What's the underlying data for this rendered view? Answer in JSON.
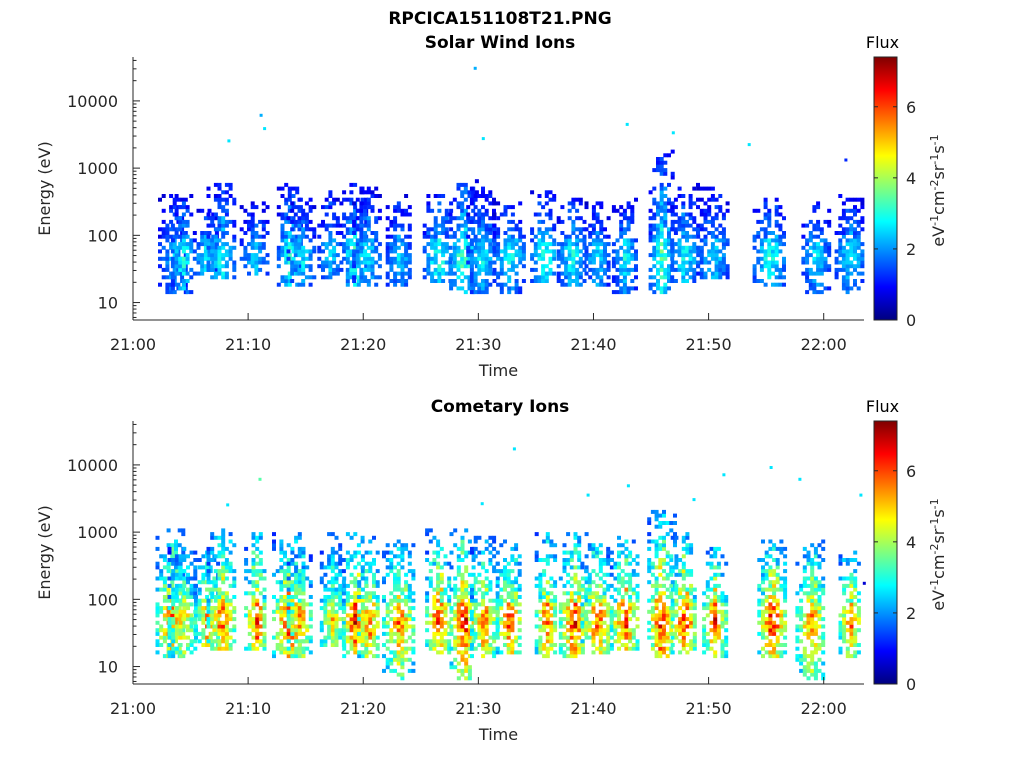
{
  "figure": {
    "title": "RPCICA151108T21.PNG"
  },
  "colors": {
    "colormap": [
      "#00007f",
      "#0000ff",
      "#007fff",
      "#00ffff",
      "#7fff7f",
      "#ffff00",
      "#ff7f00",
      "#ff0000",
      "#7f0000"
    ],
    "axis": "#262626"
  },
  "chart_data": [
    {
      "type": "heatmap",
      "title": "Solar Wind Ions",
      "xlabel": "Time",
      "ylabel": "Energy (eV)",
      "x_ticks": [
        "21:00",
        "21:10",
        "21:20",
        "21:30",
        "21:40",
        "21:50",
        "22:00"
      ],
      "xlim_minutes": [
        0,
        63.5
      ],
      "y_scale": "log",
      "y_ticks": [
        "10",
        "100",
        "1000",
        "10000"
      ],
      "ylim": [
        5.5,
        45000
      ],
      "colorbar": {
        "label_top": "Flux",
        "label": "eV-1cm-2sr-1s-1",
        "ticks": [
          "0",
          "2",
          "4",
          "6"
        ],
        "range": [
          0,
          7.4
        ]
      },
      "bursts": [
        {
          "minute": 3.4,
          "peak": 2.6,
          "maxE": 450,
          "minE": 12
        },
        {
          "minute": 4.2,
          "peak": 3.4,
          "maxE": 400,
          "minE": 12
        },
        {
          "minute": 6.2,
          "peak": 3.0,
          "maxE": 250,
          "minE": 25
        },
        {
          "minute": 7.6,
          "peak": 3.2,
          "maxE": 600,
          "minE": 20
        },
        {
          "minute": 10.5,
          "peak": 2.8,
          "maxE": 300,
          "minE": 25
        },
        {
          "minute": 13.5,
          "peak": 3.3,
          "maxE": 600,
          "minE": 16
        },
        {
          "minute": 14.5,
          "peak": 3.0,
          "maxE": 350,
          "minE": 16
        },
        {
          "minute": 17.0,
          "peak": 2.8,
          "maxE": 450,
          "minE": 20
        },
        {
          "minute": 19.2,
          "peak": 3.6,
          "maxE": 600,
          "minE": 16
        },
        {
          "minute": 20.2,
          "peak": 3.0,
          "maxE": 500,
          "minE": 16
        },
        {
          "minute": 23.0,
          "peak": 2.8,
          "maxE": 400,
          "minE": 16
        },
        {
          "minute": 26.4,
          "peak": 3.4,
          "maxE": 400,
          "minE": 18
        },
        {
          "minute": 28.6,
          "peak": 3.8,
          "maxE": 650,
          "minE": 12
        },
        {
          "minute": 30.2,
          "peak": 3.0,
          "maxE": 500,
          "minE": 12
        },
        {
          "minute": 32.6,
          "peak": 3.2,
          "maxE": 300,
          "minE": 12
        },
        {
          "minute": 35.6,
          "peak": 3.4,
          "maxE": 450,
          "minE": 18
        },
        {
          "minute": 38.0,
          "peak": 3.2,
          "maxE": 350,
          "minE": 16
        },
        {
          "minute": 40.2,
          "peak": 3.0,
          "maxE": 300,
          "minE": 16
        },
        {
          "minute": 42.6,
          "peak": 3.0,
          "maxE": 350,
          "minE": 12
        },
        {
          "minute": 45.8,
          "peak": 3.6,
          "maxE": 1800,
          "minE": 12
        },
        {
          "minute": 47.8,
          "peak": 3.2,
          "maxE": 600,
          "minE": 18
        },
        {
          "minute": 50.3,
          "peak": 2.8,
          "maxE": 500,
          "minE": 20
        },
        {
          "minute": 55.2,
          "peak": 3.4,
          "maxE": 350,
          "minE": 16
        },
        {
          "minute": 59.2,
          "peak": 3.0,
          "maxE": 300,
          "minE": 12
        },
        {
          "minute": 62.2,
          "peak": 3.0,
          "maxE": 400,
          "minE": 12
        }
      ],
      "isolated_points": [
        {
          "minute": 29.6,
          "energy": 30000,
          "value": 2.2
        },
        {
          "minute": 11.0,
          "energy": 6000,
          "value": 2.2
        },
        {
          "minute": 11.3,
          "energy": 3800,
          "value": 2.6
        },
        {
          "minute": 8.2,
          "energy": 2500,
          "value": 2.6
        },
        {
          "minute": 30.3,
          "energy": 2700,
          "value": 2.6
        },
        {
          "minute": 42.8,
          "energy": 4400,
          "value": 2.6
        },
        {
          "minute": 46.8,
          "energy": 3300,
          "value": 2.6
        },
        {
          "minute": 53.4,
          "energy": 2200,
          "value": 2.6
        },
        {
          "minute": 61.8,
          "energy": 1300,
          "value": 1.2
        }
      ]
    },
    {
      "type": "heatmap",
      "title": "Cometary Ions",
      "xlabel": "Time",
      "ylabel": "Energy (eV)",
      "x_ticks": [
        "21:00",
        "21:10",
        "21:20",
        "21:30",
        "21:40",
        "21:50",
        "22:00"
      ],
      "xlim_minutes": [
        0,
        63.5
      ],
      "y_scale": "log",
      "y_ticks": [
        "10",
        "100",
        "1000",
        "10000"
      ],
      "ylim": [
        5.5,
        45000
      ],
      "colorbar": {
        "label_top": "Flux",
        "label": "eV-1cm-2sr-1s-1",
        "ticks": [
          "0",
          "2",
          "4",
          "6"
        ],
        "range": [
          0,
          7.4
        ]
      },
      "bursts": [
        {
          "minute": 3.2,
          "peak": 6.4,
          "maxE": 1100,
          "minE": 12
        },
        {
          "minute": 4.2,
          "peak": 5.6,
          "maxE": 600,
          "minE": 12
        },
        {
          "minute": 6.4,
          "peak": 6.2,
          "maxE": 500,
          "minE": 18
        },
        {
          "minute": 7.6,
          "peak": 6.4,
          "maxE": 1100,
          "minE": 16
        },
        {
          "minute": 10.6,
          "peak": 6.6,
          "maxE": 1000,
          "minE": 16
        },
        {
          "minute": 13.4,
          "peak": 6.8,
          "maxE": 900,
          "minE": 12
        },
        {
          "minute": 14.4,
          "peak": 6.0,
          "maxE": 600,
          "minE": 12
        },
        {
          "minute": 17.2,
          "peak": 5.4,
          "maxE": 900,
          "minE": 18
        },
        {
          "minute": 19.2,
          "peak": 6.9,
          "maxE": 1100,
          "minE": 12
        },
        {
          "minute": 20.4,
          "peak": 6.4,
          "maxE": 800,
          "minE": 12
        },
        {
          "minute": 23.0,
          "peak": 6.2,
          "maxE": 700,
          "minE": 6
        },
        {
          "minute": 26.4,
          "peak": 6.8,
          "maxE": 1000,
          "minE": 14
        },
        {
          "minute": 28.6,
          "peak": 7.1,
          "maxE": 1000,
          "minE": 6
        },
        {
          "minute": 30.4,
          "peak": 6.2,
          "maxE": 800,
          "minE": 12
        },
        {
          "minute": 32.6,
          "peak": 6.6,
          "maxE": 700,
          "minE": 14
        },
        {
          "minute": 35.8,
          "peak": 6.4,
          "maxE": 1100,
          "minE": 12
        },
        {
          "minute": 38.2,
          "peak": 6.8,
          "maxE": 900,
          "minE": 12
        },
        {
          "minute": 40.2,
          "peak": 6.4,
          "maxE": 700,
          "minE": 14
        },
        {
          "minute": 42.6,
          "peak": 6.6,
          "maxE": 900,
          "minE": 16
        },
        {
          "minute": 45.8,
          "peak": 7.0,
          "maxE": 2000,
          "minE": 12
        },
        {
          "minute": 47.8,
          "peak": 6.8,
          "maxE": 900,
          "minE": 14
        },
        {
          "minute": 50.4,
          "peak": 6.6,
          "maxE": 600,
          "minE": 12
        },
        {
          "minute": 55.4,
          "peak": 7.1,
          "maxE": 700,
          "minE": 12
        },
        {
          "minute": 58.8,
          "peak": 6.4,
          "maxE": 700,
          "minE": 6
        },
        {
          "minute": 62.2,
          "peak": 6.6,
          "maxE": 500,
          "minE": 12
        }
      ],
      "isolated_points": [
        {
          "minute": 33.0,
          "energy": 17000,
          "value": 2.6
        },
        {
          "minute": 10.9,
          "energy": 6000,
          "value": 3.4
        },
        {
          "minute": 55.3,
          "energy": 9000,
          "value": 2.6
        },
        {
          "minute": 51.2,
          "energy": 7000,
          "value": 2.6
        },
        {
          "minute": 57.8,
          "energy": 6000,
          "value": 2.6
        },
        {
          "minute": 63.1,
          "energy": 3500,
          "value": 2.6
        },
        {
          "minute": 8.1,
          "energy": 2500,
          "value": 2.6
        },
        {
          "minute": 30.2,
          "energy": 2600,
          "value": 2.6
        },
        {
          "minute": 39.4,
          "energy": 3500,
          "value": 2.6
        },
        {
          "minute": 42.9,
          "energy": 4800,
          "value": 2.6
        },
        {
          "minute": 48.6,
          "energy": 3000,
          "value": 2.6
        },
        {
          "minute": 63.4,
          "energy": 170,
          "value": 0.6
        }
      ]
    }
  ]
}
